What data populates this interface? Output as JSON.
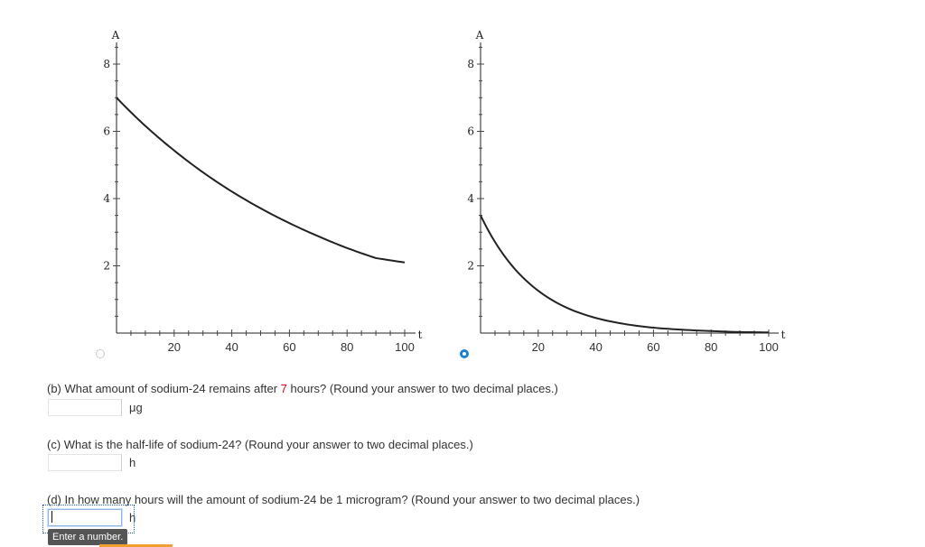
{
  "graphs": [
    {
      "y_axis_label": "A",
      "x_axis_label": "t",
      "y_ticks": [
        "2",
        "4",
        "6",
        "8"
      ],
      "x_ticks": [
        "20",
        "40",
        "60",
        "80",
        "100"
      ],
      "option_selected": false
    },
    {
      "y_axis_label": "A",
      "x_axis_label": "t",
      "y_ticks": [
        "2",
        "4",
        "6",
        "8"
      ],
      "x_ticks": [
        "20",
        "40",
        "60",
        "80",
        "100"
      ],
      "option_selected": true
    }
  ],
  "chart_data": [
    {
      "type": "line",
      "xlabel": "t",
      "ylabel": "A",
      "xlim": [
        0,
        100
      ],
      "ylim": [
        0,
        8
      ],
      "series": [
        {
          "x": [
            0,
            10,
            20,
            30,
            40,
            50,
            60,
            70,
            80,
            90,
            100
          ],
          "values": [
            7.0,
            6.16,
            5.43,
            4.78,
            4.21,
            3.71,
            3.27,
            2.88,
            2.53,
            2.23,
            2.1
          ]
        }
      ]
    },
    {
      "type": "line",
      "xlabel": "t",
      "ylabel": "A",
      "xlim": [
        0,
        100
      ],
      "ylim": [
        0,
        8
      ],
      "series": [
        {
          "x": [
            0,
            10,
            20,
            30,
            40,
            50,
            60,
            70,
            80,
            90,
            100
          ],
          "values": [
            3.5,
            2.1,
            1.26,
            0.75,
            0.45,
            0.27,
            0.16,
            0.1,
            0.06,
            0.03,
            0.02
          ]
        }
      ]
    }
  ],
  "questions": {
    "b": {
      "prefix": "(b) What amount of sodium-24 remains after ",
      "highlight": "7",
      "suffix": " hours? (Round your answer to two decimal places.)",
      "unit": "μg",
      "value": ""
    },
    "c": {
      "text": "(c) What is the half-life of sodium-24? (Round your answer to two decimal places.)",
      "unit": "h",
      "value": ""
    },
    "d": {
      "text": "(d) In how many hours will the amount of sodium-24 be 1 microgram? (Round your answer to two decimal places.)",
      "unit": "h",
      "value": ""
    }
  },
  "tooltip": "Enter a number.",
  "colors": {
    "radio_selected": "#1a7fd6",
    "highlight": "#d0021b",
    "tooltip_bg": "#555555"
  }
}
